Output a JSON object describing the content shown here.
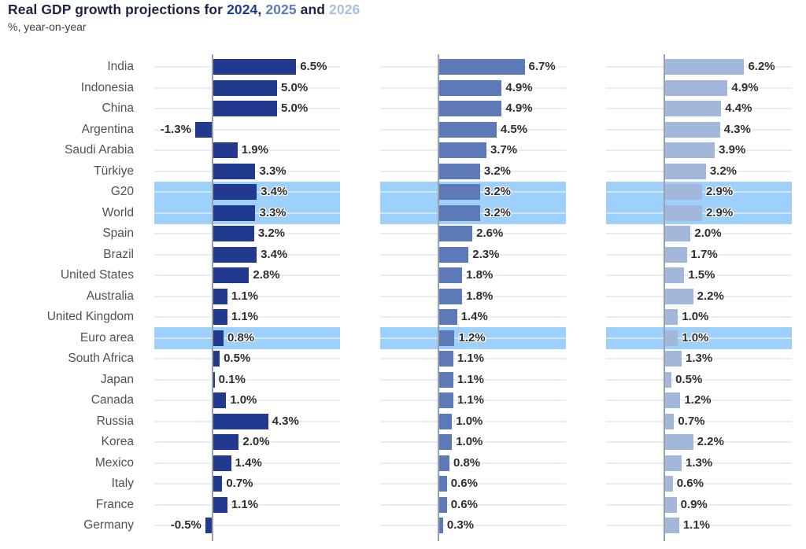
{
  "header": {
    "title_parts": [
      {
        "text": "Real GDP growth projections for ",
        "color": "#1b2447"
      },
      {
        "text": "2024",
        "color": "#21398e"
      },
      {
        "text": ", ",
        "color": "#1b2447"
      },
      {
        "text": "2025",
        "color": "#5d79b7"
      },
      {
        "text": " and ",
        "color": "#1b2447"
      },
      {
        "text": "2026",
        "color": "#a9bfe0"
      }
    ],
    "subtitle": "%, year-on-year"
  },
  "chart_data": {
    "type": "bar",
    "orientation": "horizontal",
    "title": "Real GDP growth projections for 2024, 2025 and 2026",
    "subtitle": "%, year-on-year",
    "unit": "%",
    "categories": [
      "India",
      "Indonesia",
      "China",
      "Argentina",
      "Saudi Arabia",
      "Türkiye",
      "G20",
      "World",
      "Spain",
      "Brazil",
      "United States",
      "Australia",
      "United Kingdom",
      "Euro area",
      "South Africa",
      "Japan",
      "Canada",
      "Russia",
      "Korea",
      "Mexico",
      "Italy",
      "France",
      "Germany"
    ],
    "series": [
      {
        "name": "2024",
        "color": "#21398e",
        "values": [
          6.5,
          5.0,
          5.0,
          -1.3,
          1.9,
          3.3,
          3.4,
          3.3,
          3.2,
          3.4,
          2.8,
          1.1,
          1.1,
          0.8,
          0.5,
          0.1,
          1.0,
          4.3,
          2.0,
          1.4,
          0.7,
          1.1,
          -0.5
        ],
        "value_labels": [
          "6.5%",
          "5.0%",
          "5.0%",
          "-1.3%",
          "1.9%",
          "3.3%",
          "3.4%",
          "3.3%",
          "3.2%",
          "3.4%",
          "2.8%",
          "1.1%",
          "1.1%",
          "0.8%",
          "0.5%",
          "0.1%",
          "1.0%",
          "4.3%",
          "2.0%",
          "1.4%",
          "0.7%",
          "1.1%",
          "-0.5%"
        ]
      },
      {
        "name": "2025",
        "color": "#5d79b7",
        "values": [
          6.7,
          4.9,
          4.9,
          4.5,
          3.7,
          3.2,
          3.2,
          3.2,
          2.6,
          2.3,
          1.8,
          1.8,
          1.4,
          1.2,
          1.1,
          1.1,
          1.1,
          1.0,
          1.0,
          0.8,
          0.6,
          0.6,
          0.3
        ],
        "value_labels": [
          "6.7%",
          "4.9%",
          "4.9%",
          "4.5%",
          "3.7%",
          "3.2%",
          "3.2%",
          "3.2%",
          "2.6%",
          "2.3%",
          "1.8%",
          "1.8%",
          "1.4%",
          "1.2%",
          "1.1%",
          "1.1%",
          "1.1%",
          "1.0%",
          "1.0%",
          "0.8%",
          "0.6%",
          "0.6%",
          "0.3%"
        ]
      },
      {
        "name": "2026",
        "color": "#a3b7da",
        "values": [
          6.2,
          4.9,
          4.4,
          4.3,
          3.9,
          3.2,
          2.9,
          2.9,
          2.0,
          1.7,
          1.5,
          2.2,
          1.0,
          1.0,
          1.3,
          0.5,
          1.2,
          0.7,
          2.2,
          1.3,
          0.6,
          0.9,
          1.1
        ],
        "value_labels": [
          "6.2%",
          "4.9%",
          "4.4%",
          "4.3%",
          "3.9%",
          "3.2%",
          "2.9%",
          "2.9%",
          "2.0%",
          "1.7%",
          "1.5%",
          "2.2%",
          "1.0%",
          "1.0%",
          "1.3%",
          "0.5%",
          "1.2%",
          "0.7%",
          "2.2%",
          "1.3%",
          "0.6%",
          "0.9%",
          "1.1%"
        ]
      }
    ],
    "highlighted_categories": [
      "G20",
      "World",
      "Euro area"
    ],
    "highlight_color": "#9ed0fc",
    "gridline_color": "#e9edf3",
    "gridline_color_on_highlight": "rgba(255,255,255,0.45)",
    "zero_axis_color": "#9ba1a9",
    "category_label_color": "#4d5257",
    "value_label_color": "#2e2e2e",
    "axis": {
      "xmin": -4.6,
      "xmax": 10.0,
      "zero_line": true,
      "gridlines": "per-row",
      "tick_labels": "none"
    },
    "legend": "in-title-colors"
  }
}
